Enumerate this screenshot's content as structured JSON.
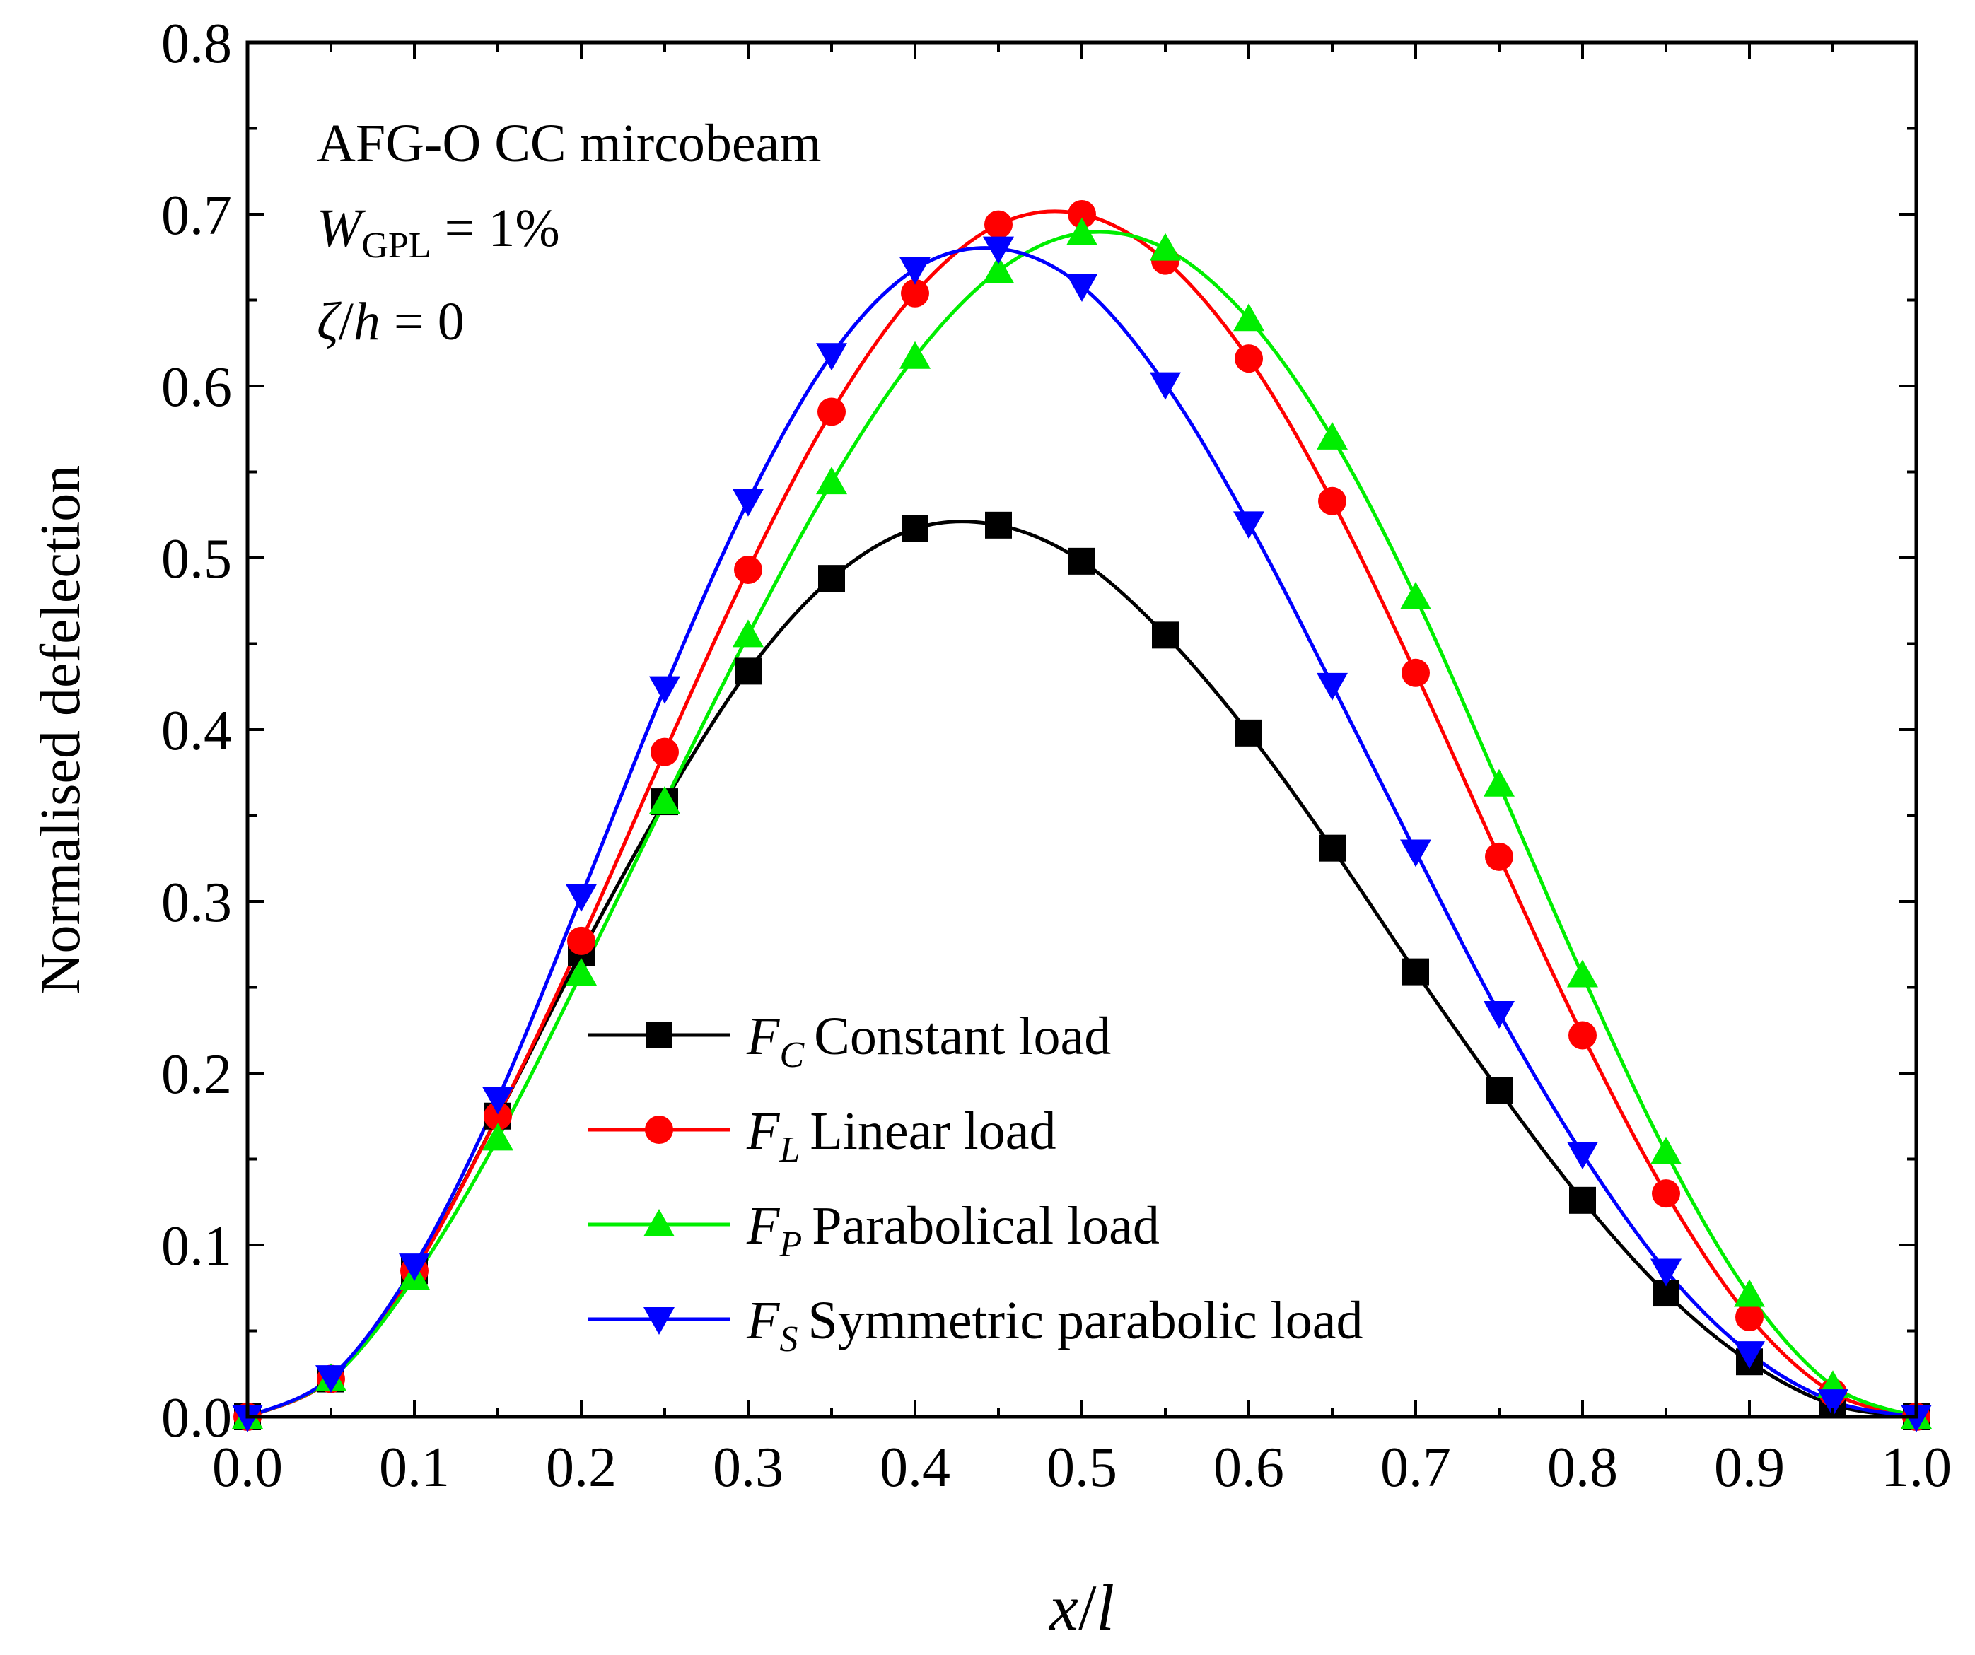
{
  "chart_data": {
    "type": "line",
    "title": "",
    "xlabel": "x/l",
    "xlabel_parts": {
      "a": "x",
      "sep": "/",
      "b": "l"
    },
    "ylabel": "Normalised defelection",
    "xlim": [
      0.0,
      1.0
    ],
    "ylim": [
      0.0,
      0.8
    ],
    "x_major_ticks": [
      0.0,
      0.1,
      0.2,
      0.3,
      0.4,
      0.5,
      0.6,
      0.7,
      0.8,
      0.9,
      1.0
    ],
    "x_tick_labels": [
      "0.0",
      "0.1",
      "0.2",
      "0.3",
      "0.4",
      "0.5",
      "0.6",
      "0.7",
      "0.8",
      "0.9",
      "1.0"
    ],
    "y_major_ticks": [
      0.0,
      0.1,
      0.2,
      0.3,
      0.4,
      0.5,
      0.6,
      0.7,
      0.8
    ],
    "y_tick_labels": [
      "0.0",
      "0.1",
      "0.2",
      "0.3",
      "0.4",
      "0.5",
      "0.6",
      "0.7",
      "0.8"
    ],
    "grid": false,
    "annotations": {
      "line1": "AFG-O CC mircobeam",
      "line2": {
        "symbol": "W",
        "subscript": "GPL",
        "rest": " = 1%"
      },
      "line3": {
        "zeta": "ζ",
        "slash": "/",
        "h": "h",
        "rest": " = 0"
      }
    },
    "legend_position": "lower-center",
    "x": [
      0.0,
      0.05,
      0.1,
      0.15,
      0.2,
      0.25,
      0.3,
      0.35,
      0.4,
      0.45,
      0.5,
      0.55,
      0.6,
      0.65,
      0.7,
      0.75,
      0.8,
      0.85,
      0.9,
      0.95,
      1.0
    ],
    "series": [
      {
        "name": "Constant load",
        "symbol": "F",
        "subscript": "C",
        "label": "Constant load",
        "color": "#000000",
        "marker": "square",
        "values": [
          0.0,
          0.022,
          0.085,
          0.175,
          0.27,
          0.358,
          0.434,
          0.488,
          0.517,
          0.519,
          0.498,
          0.455,
          0.398,
          0.331,
          0.259,
          0.19,
          0.126,
          0.072,
          0.032,
          0.007,
          0.0
        ]
      },
      {
        "name": "Linear load",
        "symbol": "F",
        "subscript": "L",
        "label": "Linear load",
        "color": "#ff0000",
        "marker": "circle",
        "values": [
          0.0,
          0.022,
          0.085,
          0.175,
          0.277,
          0.387,
          0.493,
          0.585,
          0.654,
          0.694,
          0.7,
          0.673,
          0.616,
          0.533,
          0.433,
          0.326,
          0.222,
          0.13,
          0.058,
          0.014,
          0.0
        ]
      },
      {
        "name": "Parabolical load",
        "symbol": "F",
        "subscript": "P",
        "label": "Parabolical load",
        "color": "#00ee00",
        "marker": "triangle-up",
        "values": [
          0.0,
          0.022,
          0.081,
          0.162,
          0.258,
          0.358,
          0.455,
          0.544,
          0.617,
          0.667,
          0.689,
          0.68,
          0.639,
          0.57,
          0.477,
          0.368,
          0.257,
          0.154,
          0.071,
          0.018,
          0.0
        ]
      },
      {
        "name": "Symmetric parabolic load",
        "symbol": "F",
        "subscript": "S",
        "label": "Symmetric parabolic load",
        "color": "#0000ff",
        "marker": "triangle-down",
        "values": [
          0.0,
          0.023,
          0.088,
          0.185,
          0.303,
          0.424,
          0.533,
          0.618,
          0.668,
          0.68,
          0.658,
          0.601,
          0.52,
          0.426,
          0.329,
          0.235,
          0.153,
          0.085,
          0.037,
          0.009,
          0.0
        ]
      }
    ]
  }
}
